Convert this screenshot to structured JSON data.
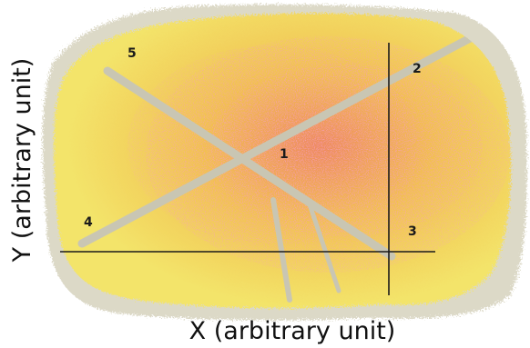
{
  "figure": {
    "x_axis_label": "X (arbitrary unit)",
    "y_axis_label": "Y (arbitrary unit)",
    "region_labels": [
      "1",
      "2",
      "3",
      "4",
      "5"
    ],
    "colors": {
      "outer_halo": "#cfcbb4",
      "sample_base": "#f2e35a",
      "sample_light": "#f7ec7c",
      "sample_warm": "#f2b24a",
      "hot_spot": "#e5527a",
      "crack_line": "#c9c6b3",
      "axis_line": "#1a1a1a",
      "background": "#ffffff"
    }
  }
}
